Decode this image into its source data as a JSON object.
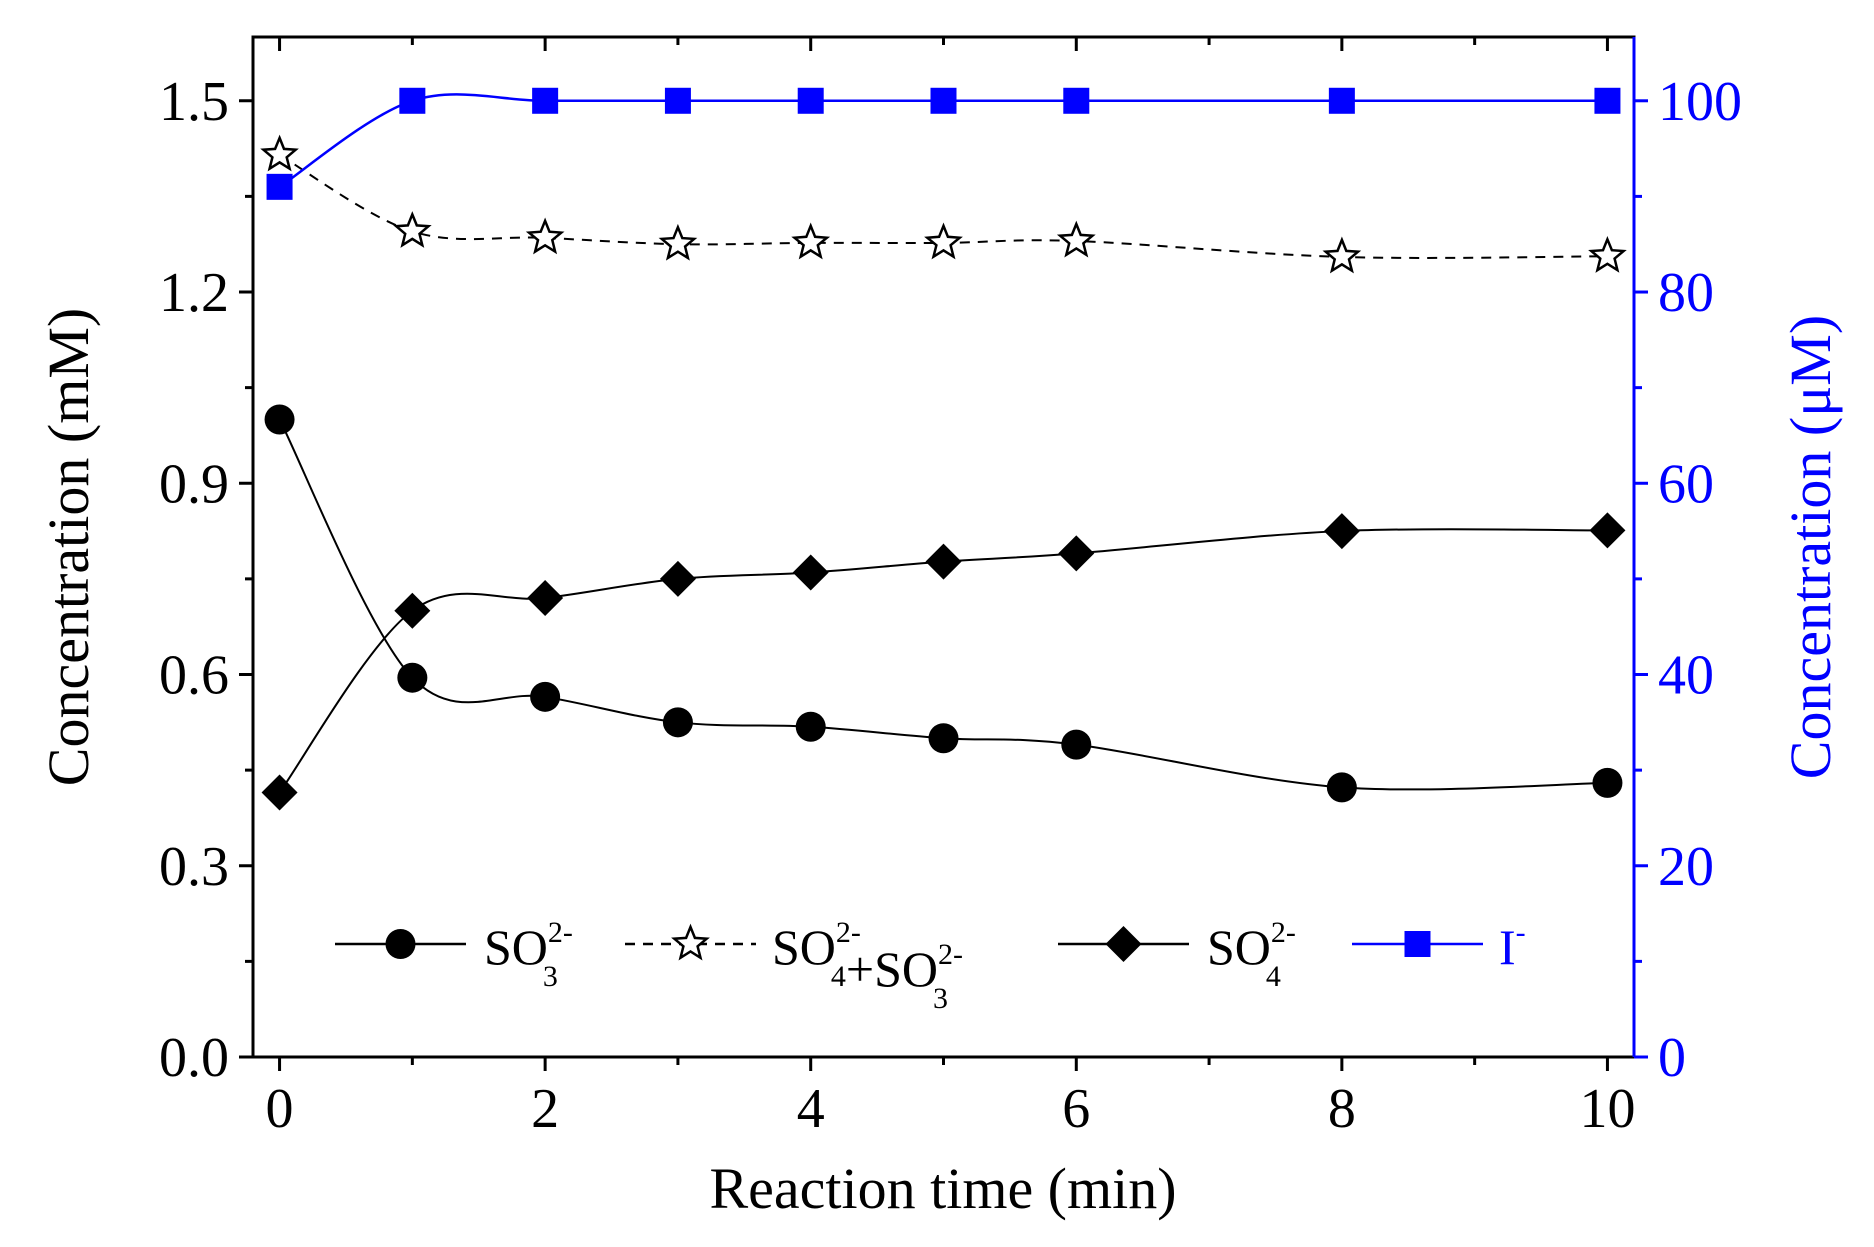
{
  "chart_data": {
    "type": "line",
    "title": "",
    "xlabel": "Reaction time (min)",
    "ylabel_left": "Concentration (mM)",
    "ylabel_right": "Concentration (μM)",
    "xlim": [
      -0.2,
      10.2
    ],
    "ylim_left": [
      0.0,
      1.6
    ],
    "ylim_right": [
      0,
      106.67
    ],
    "x_ticks": [
      0,
      2,
      4,
      6,
      8,
      10
    ],
    "x_tick_labels": [
      "0",
      "2",
      "4",
      "6",
      "8",
      "10"
    ],
    "y_left_ticks": [
      0.0,
      0.3,
      0.6,
      0.9,
      1.2,
      1.5
    ],
    "y_left_tick_labels": [
      "0.0",
      "0.3",
      "0.6",
      "0.9",
      "1.2",
      "1.5"
    ],
    "y_right_ticks": [
      0,
      20,
      40,
      60,
      80,
      100
    ],
    "y_right_tick_labels": [
      "0",
      "20",
      "40",
      "60",
      "80",
      "100"
    ],
    "grid": false,
    "legend_position": "bottom-center",
    "series": [
      {
        "name": "SO3 2-",
        "legend_base": "SO",
        "legend_sub": "3",
        "legend_sup": "2-",
        "axis": "left",
        "marker": "circle",
        "line_style": "solid",
        "color": "#000000",
        "x": [
          0,
          1,
          2,
          3,
          4,
          5,
          6,
          8,
          10
        ],
        "y": [
          1.0,
          0.595,
          0.565,
          0.525,
          0.518,
          0.5,
          0.49,
          0.423,
          0.43
        ]
      },
      {
        "name": "SO4 2- + SO3 2-",
        "legend_parts": [
          {
            "base": "SO",
            "sub": "4",
            "sup": "2-"
          },
          {
            "base": "+SO",
            "sub": "3",
            "sup": "2-"
          }
        ],
        "axis": "left",
        "marker": "star",
        "line_style": "dashed",
        "color": "#000000",
        "x": [
          0,
          1,
          2,
          3,
          4,
          5,
          6,
          8,
          10
        ],
        "y": [
          1.415,
          1.295,
          1.285,
          1.275,
          1.277,
          1.277,
          1.28,
          1.255,
          1.256
        ]
      },
      {
        "name": "SO4 2-",
        "legend_base": "SO",
        "legend_sub": "4",
        "legend_sup": "2-",
        "axis": "left",
        "marker": "diamond",
        "line_style": "solid",
        "color": "#000000",
        "x": [
          0,
          1,
          2,
          3,
          4,
          5,
          6,
          8,
          10
        ],
        "y": [
          0.415,
          0.7,
          0.72,
          0.75,
          0.76,
          0.777,
          0.79,
          0.825,
          0.826
        ]
      },
      {
        "name": "I-",
        "legend_base": "I",
        "legend_sup": "-",
        "axis": "right",
        "marker": "square",
        "line_style": "solid",
        "color": "#0000ff",
        "x": [
          0,
          1,
          2,
          3,
          4,
          5,
          6,
          8,
          10
        ],
        "y": [
          91,
          100,
          100,
          100,
          100,
          100,
          100,
          100,
          100
        ]
      }
    ]
  }
}
